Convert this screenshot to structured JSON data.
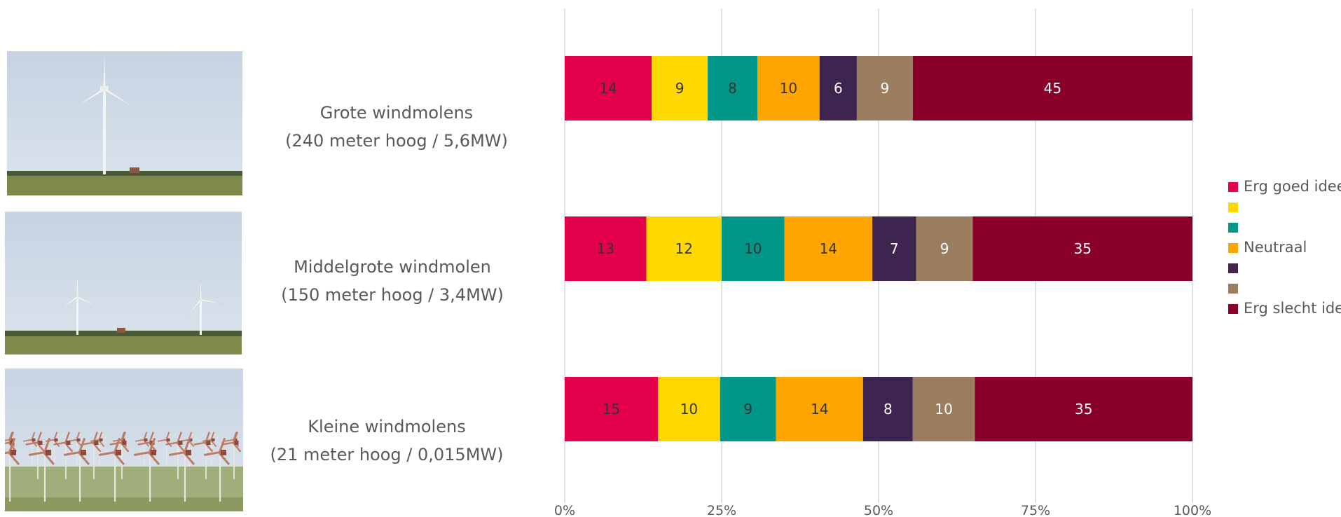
{
  "chart_data": {
    "type": "bar",
    "orientation": "horizontal",
    "stacked": true,
    "title": "",
    "subtitle": "",
    "categories": [
      "Grote windmolens (240 meter hoog / 5,6MW)",
      "Middelgrote windmolen (150 meter hoog / 3,4MW)",
      "Kleine windmolens (21 meter hoog / 0,015MW)"
    ],
    "category_lines": [
      [
        "Grote windmolens",
        "(240 meter hoog / 5,6MW)"
      ],
      [
        "Middelgrote windmolen",
        "(150 meter hoog / 3,4MW)"
      ],
      [
        "Kleine windmolens",
        "(21 meter hoog / 0,015MW)"
      ]
    ],
    "series": [
      {
        "name": "Erg goed idee",
        "color": "#E4004B",
        "label_color": "#333333",
        "values": [
          14,
          13,
          15
        ]
      },
      {
        "name": "",
        "color": "#FFD800",
        "label_color": "#333333",
        "values": [
          9,
          12,
          10
        ]
      },
      {
        "name": "",
        "color": "#009688",
        "label_color": "#333333",
        "values": [
          8,
          10,
          9
        ]
      },
      {
        "name": "Neutraal",
        "color": "#FFA500",
        "label_color": "#333333",
        "values": [
          10,
          14,
          14
        ]
      },
      {
        "name": "",
        "color": "#3D2550",
        "label_color": "#ffffff",
        "values": [
          6,
          7,
          8
        ]
      },
      {
        "name": "",
        "color": "#9B7D5F",
        "label_color": "#ffffff",
        "values": [
          9,
          9,
          10
        ]
      },
      {
        "name": "Erg slecht idee",
        "color": "#8B0028",
        "label_color": "#ffffff",
        "values": [
          45,
          35,
          35
        ]
      }
    ],
    "x_ticks": [
      "0%",
      "25%",
      "50%",
      "75%",
      "100%"
    ],
    "xlim": [
      0,
      100
    ],
    "grid": "vertical",
    "legend_position": "right"
  },
  "images": [
    {
      "name": "photo-large-turbine",
      "subject": "one large wind turbine in a flat field"
    },
    {
      "name": "photo-medium-turbines",
      "subject": "two medium wind turbines in a flat field"
    },
    {
      "name": "photo-small-turbines",
      "subject": "many small wind turbines in rows"
    }
  ],
  "colors": {
    "gridline": "#D9D9D9",
    "text": "#595959"
  }
}
